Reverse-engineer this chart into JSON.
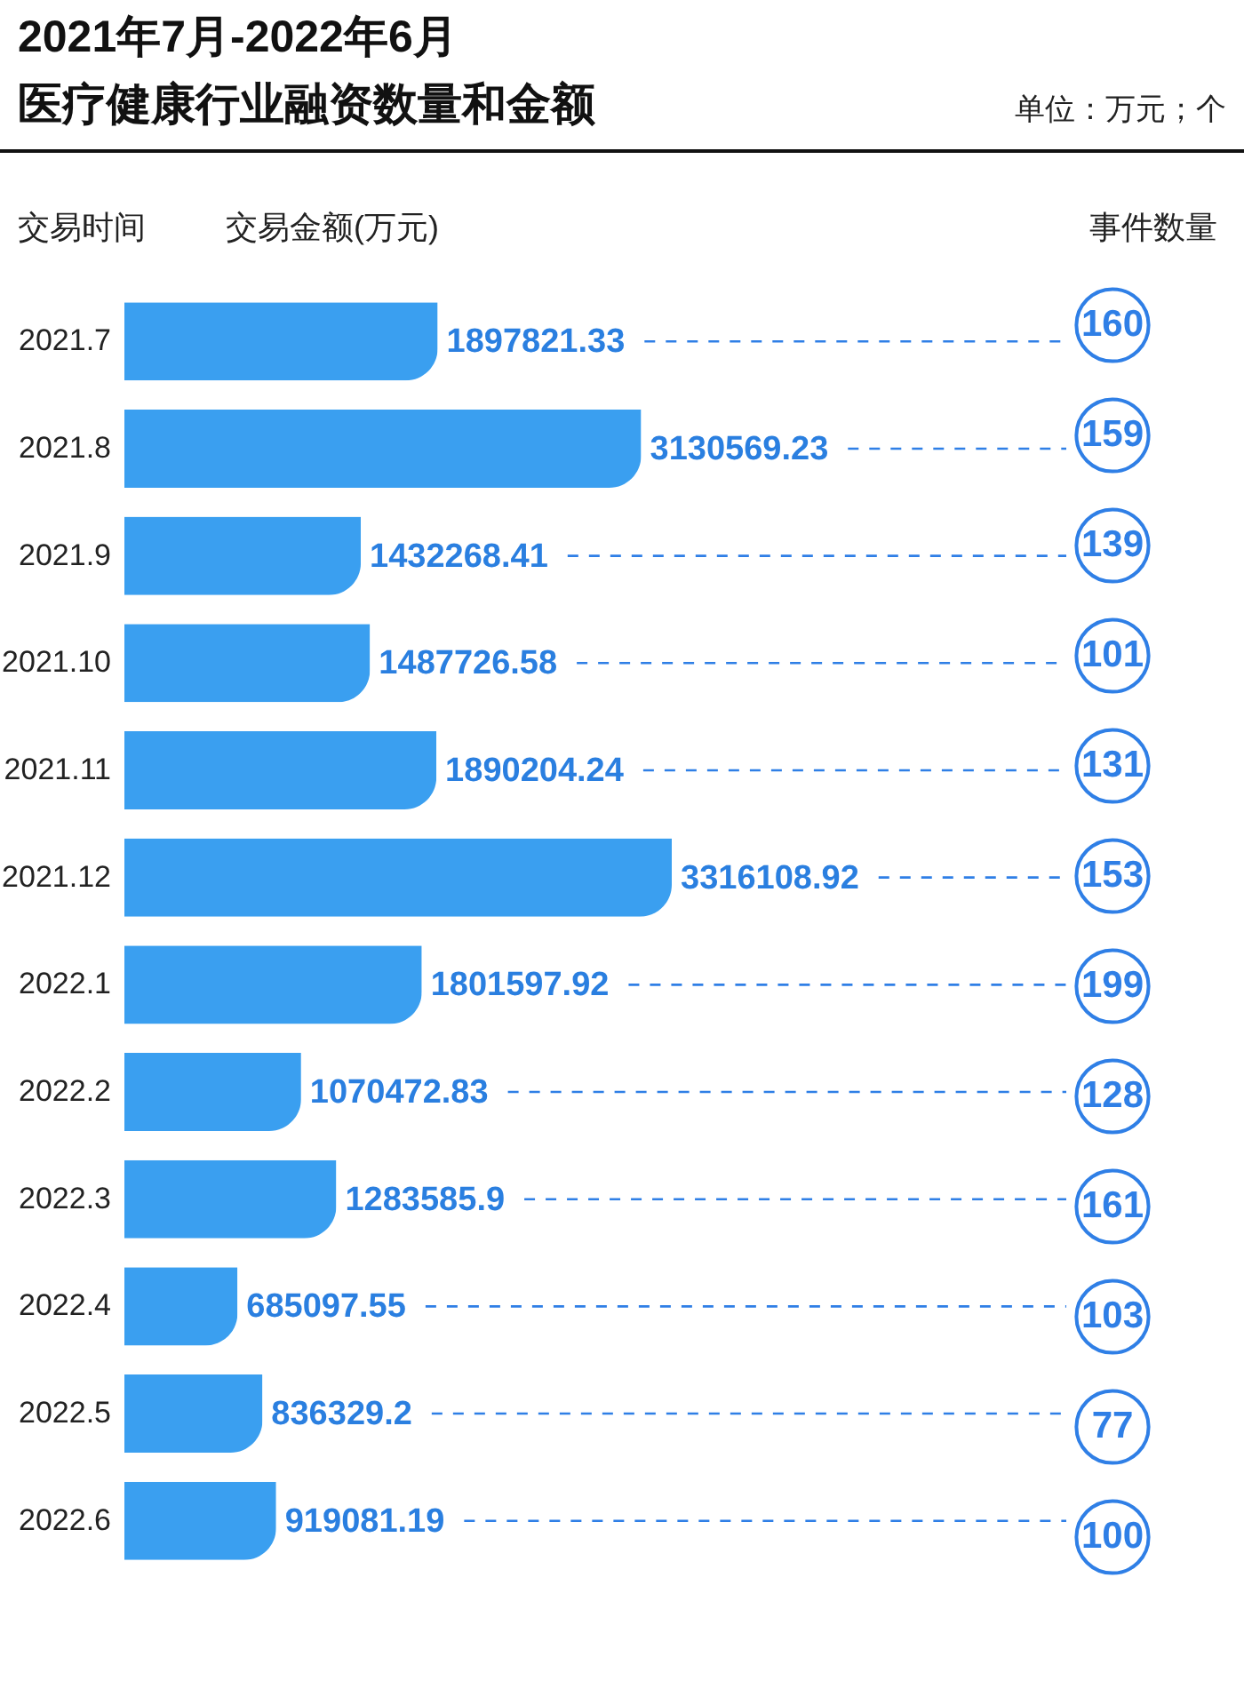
{
  "chart_data": [
    {
      "type": "bar",
      "title": "2021年7月-2022年6月",
      "subtitle": "医疗健康行业融资数量和金额",
      "annotations": [
        "单位：万元；个"
      ],
      "ylabel": "交易时间",
      "xlabel": "交易金额(万元)",
      "orientation": "horizontal",
      "color": "#3a9ff0",
      "data_labels": true,
      "categories": [
        "2021.7",
        "2021.8",
        "2021.9",
        "2021.10",
        "2021.11",
        "2021.12",
        "2022.1",
        "2022.2",
        "2022.3",
        "2022.4",
        "2022.5",
        "2022.6"
      ],
      "values": [
        1897821.33,
        3130569.23,
        1432268.41,
        1487726.58,
        1890204.24,
        3316108.92,
        1801597.92,
        1070472.83,
        1283585.9,
        685097.55,
        836329.2,
        919081.19
      ]
    },
    {
      "type": "other",
      "xlabel": "事件数量",
      "color": "#2f7fe6",
      "data_labels": true,
      "values": [
        160,
        159,
        139,
        101,
        131,
        153,
        199,
        128,
        161,
        103,
        77,
        100
      ]
    }
  ]
}
